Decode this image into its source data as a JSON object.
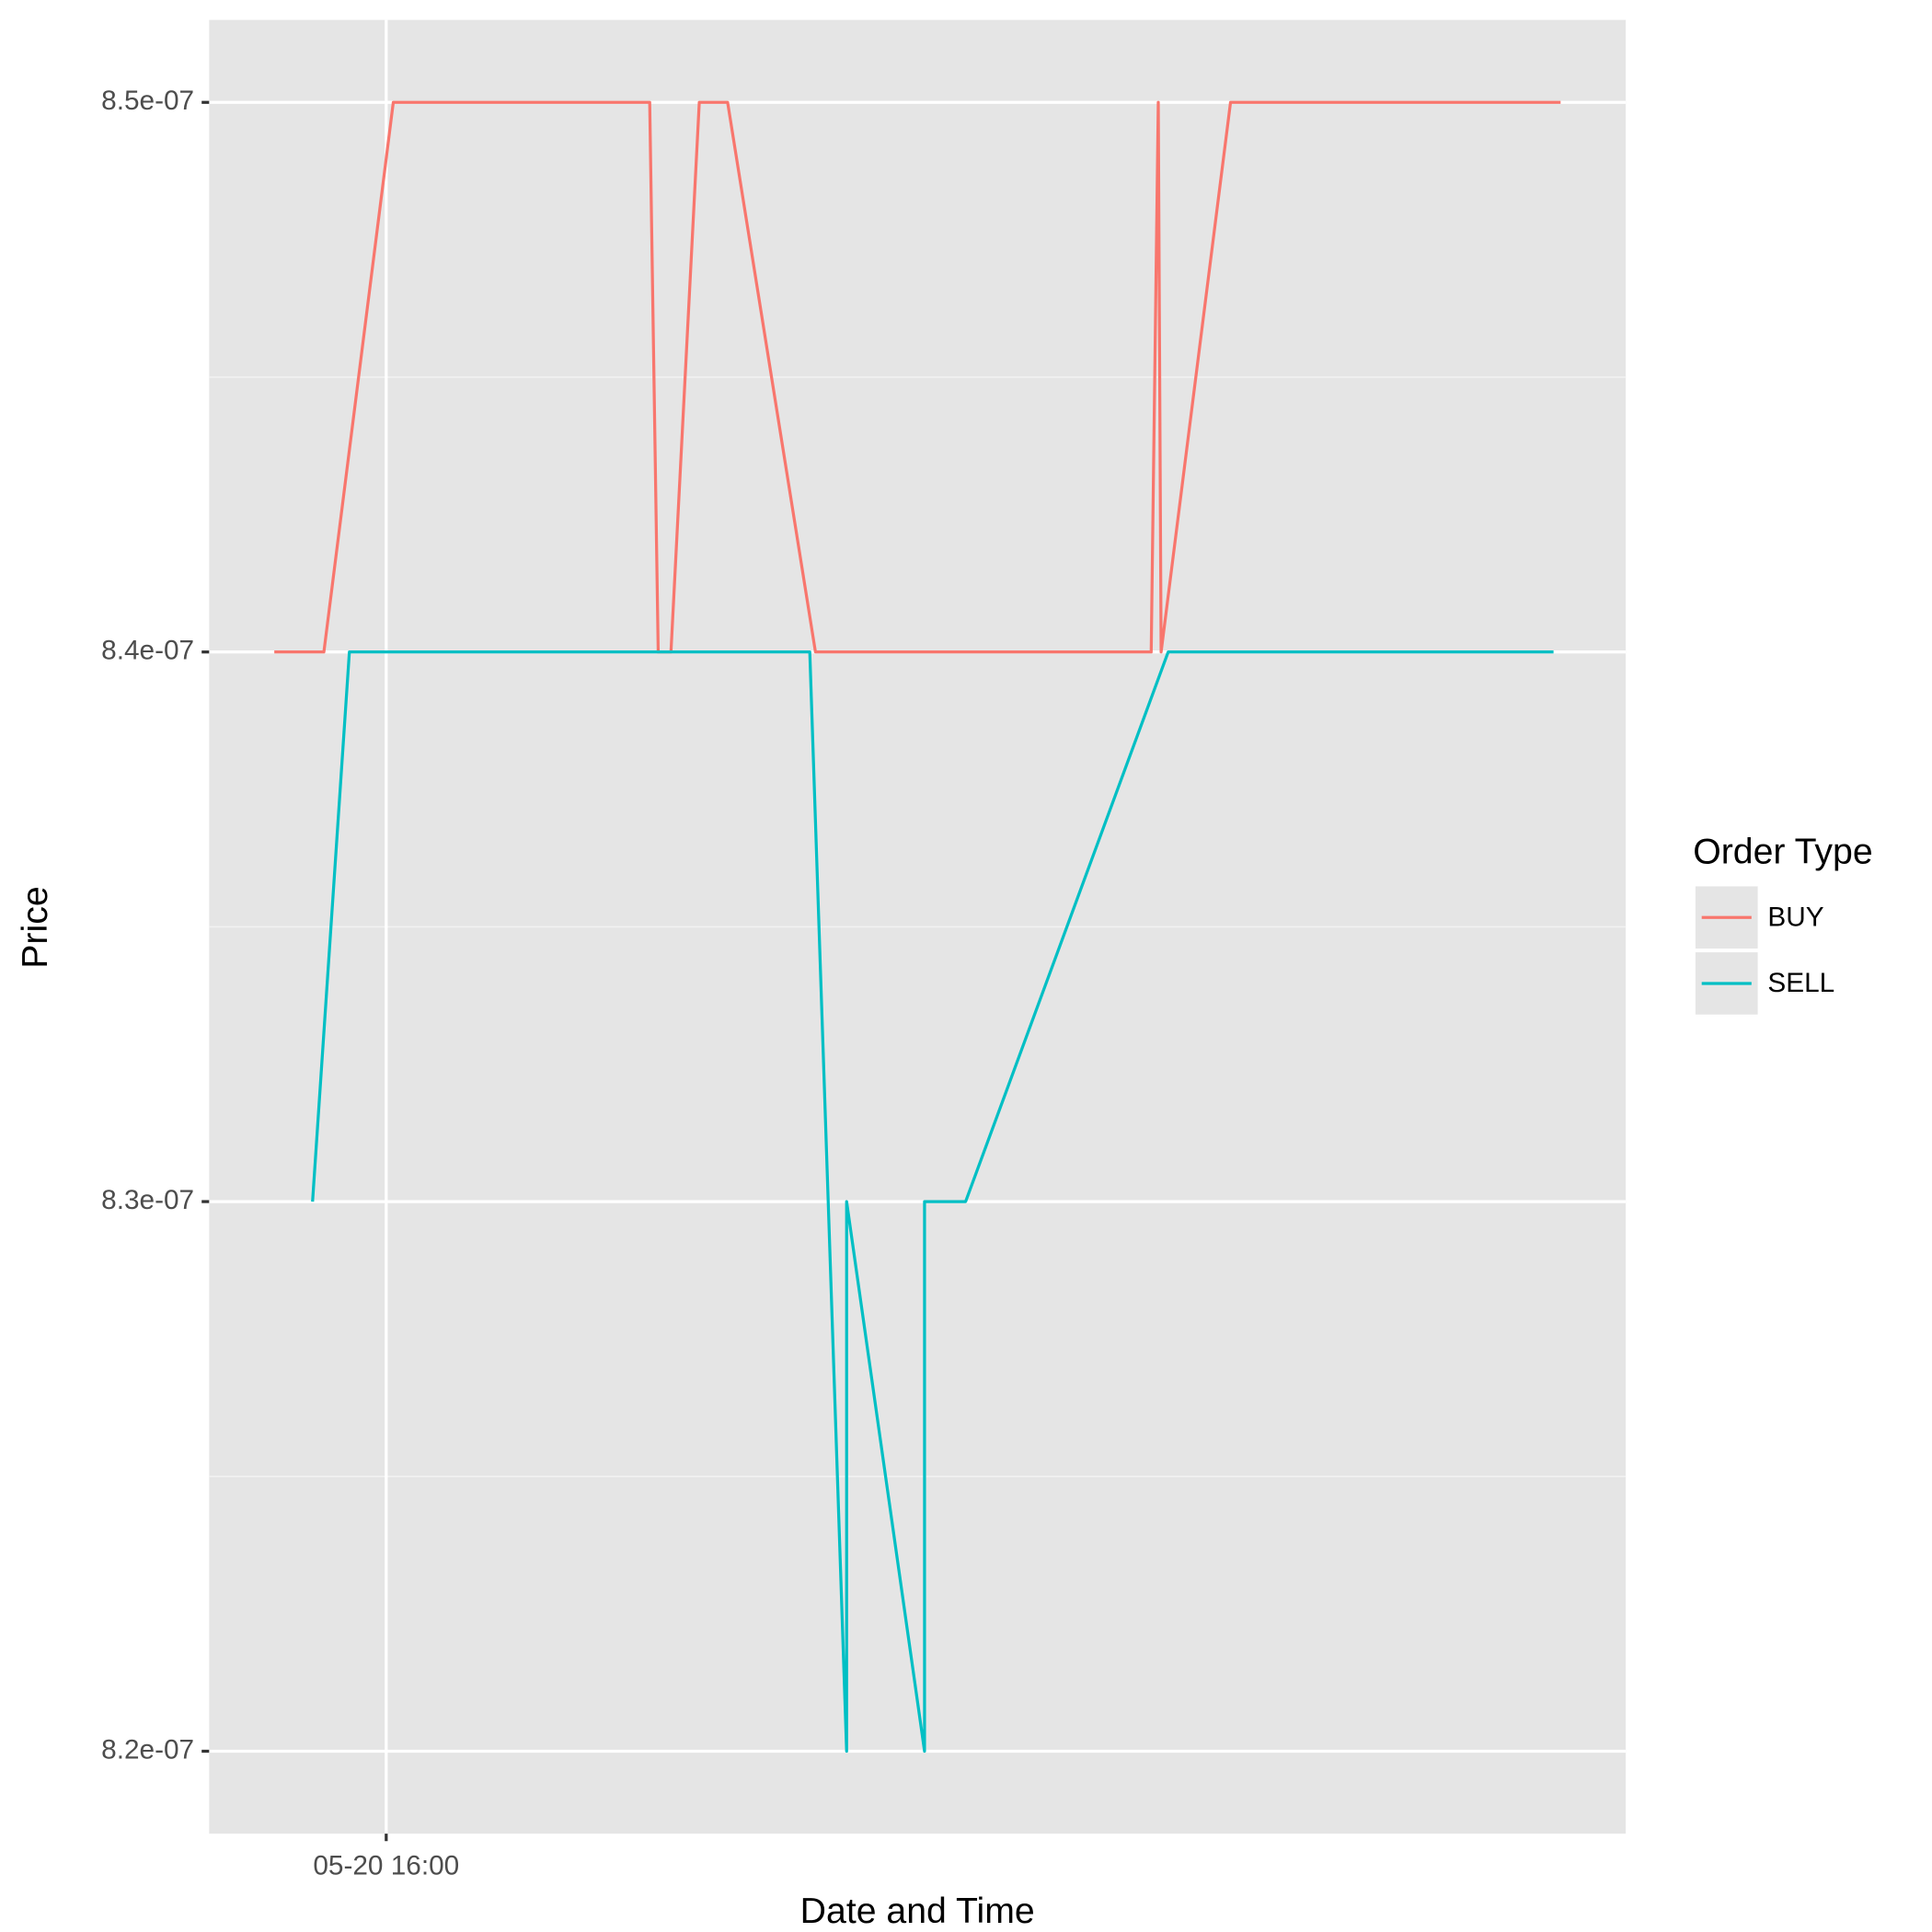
{
  "chart_data": {
    "type": "line",
    "x_label": "Date and Time",
    "y_label": "Price",
    "legend_title": "Order Type",
    "legend": "right",
    "xlim": [
      0,
      100
    ],
    "xticks": [
      {
        "value": 12.5,
        "label": "05-20 16:00"
      }
    ],
    "ylim": [
      8.185e-07,
      8.515e-07
    ],
    "yticks": [
      {
        "value": 8.2e-07,
        "label": "8.2e-07"
      },
      {
        "value": 8.3e-07,
        "label": "8.3e-07"
      },
      {
        "value": 8.4e-07,
        "label": "8.4e-07"
      },
      {
        "value": 8.5e-07,
        "label": "8.5e-07"
      }
    ],
    "yminor": [
      8.25e-07,
      8.35e-07,
      8.45e-07
    ],
    "grid": true,
    "series": [
      {
        "name": "BUY",
        "color": "#f8766d",
        "x": [
          4.6,
          8.1,
          13.0,
          31.1,
          31.7,
          32.6,
          34.6,
          36.6,
          42.8,
          66.5,
          67.0,
          67.2,
          72.1,
          95.4
        ],
        "values": [
          8.4e-07,
          8.4e-07,
          8.5e-07,
          8.5e-07,
          8.4e-07,
          8.4e-07,
          8.5e-07,
          8.5e-07,
          8.4e-07,
          8.4e-07,
          8.5e-07,
          8.4e-07,
          8.5e-07,
          8.5e-07
        ]
      },
      {
        "name": "SELL",
        "color": "#00bfc4",
        "x": [
          7.3,
          9.9,
          42.4,
          45.0,
          45.0,
          50.5,
          50.5,
          53.4,
          67.7,
          94.9
        ],
        "values": [
          8.3e-07,
          8.4e-07,
          8.4e-07,
          8.2e-07,
          8.3e-07,
          8.2e-07,
          8.3e-07,
          8.3e-07,
          8.4e-07,
          8.4e-07
        ]
      }
    ]
  }
}
